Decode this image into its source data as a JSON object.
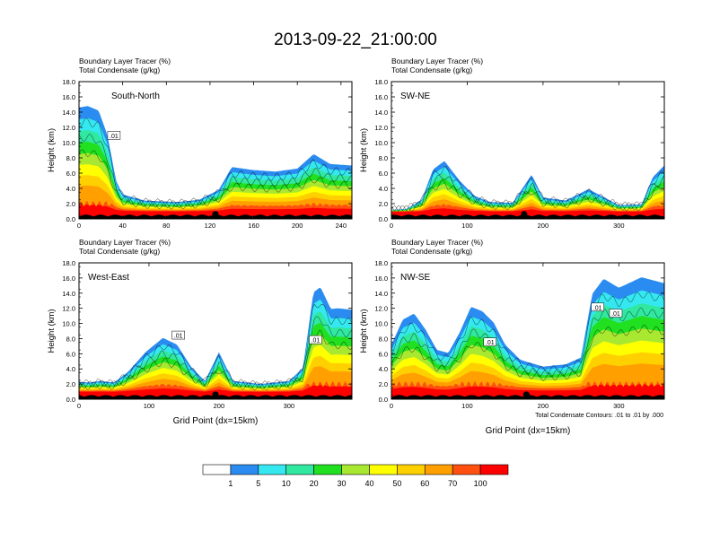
{
  "title": "2013-09-22_21:00:00",
  "footnote": "Total Condensate Contours: .01 to .01 by .000",
  "colors": [
    "#ffffff",
    "#2a8cf0",
    "#35e8f0",
    "#30e8a0",
    "#20e020",
    "#a8e830",
    "#ffff00",
    "#ffd000",
    "#ffa000",
    "#ff5010",
    "#ff0000"
  ],
  "chart_data": [
    {
      "type": "heatmap",
      "panel": "South-North",
      "header1": "Boundary Layer Tracer   (%)",
      "header2": "Total Condensate   (g/kg)",
      "xlabel": "",
      "ylabel": "Height (km)",
      "xlim": [
        0,
        250
      ],
      "ylim": [
        0,
        18
      ],
      "xticks": [
        "0",
        "40",
        "80",
        "120",
        "160",
        "200",
        "240"
      ],
      "yticks": [
        "0.0",
        "2.0",
        "4.0",
        "6.0",
        "8.0",
        "10.0",
        "12.0",
        "14.0",
        "16.0",
        "18.0"
      ],
      "contour_labels": [
        {
          "text": ".01",
          "x": 32,
          "y": 10.9
        }
      ],
      "marker_x": 125,
      "profile": {
        "x": [
          0,
          8,
          18,
          26,
          34,
          40,
          60,
          90,
          110,
          128,
          140,
          160,
          180,
          200,
          215,
          230,
          250
        ],
        "ztop": [
          14.6,
          14.8,
          14.2,
          11,
          5,
          3.2,
          2.4,
          2.2,
          2.5,
          3.8,
          6.8,
          6.4,
          6.2,
          6.6,
          8.5,
          7.2,
          7
        ]
      }
    },
    {
      "type": "heatmap",
      "panel": "SW-NE",
      "header1": "Boundary Layer Tracer   (%)",
      "header2": "Total Condensate   (g/kg)",
      "xlabel": "",
      "ylabel": "Height (km)",
      "xlim": [
        0,
        360
      ],
      "ylim": [
        0,
        18
      ],
      "xticks": [
        "0",
        "100",
        "200",
        "300"
      ],
      "yticks": [
        "0.0",
        "2.0",
        "4.0",
        "6.0",
        "8.0",
        "10.0",
        "12.0",
        "14.0",
        "16.0",
        "18.0"
      ],
      "contour_labels": [],
      "marker_x": 175,
      "profile": {
        "x": [
          0,
          20,
          40,
          55,
          70,
          90,
          110,
          130,
          160,
          185,
          200,
          230,
          260,
          300,
          330,
          345,
          360
        ],
        "ztop": [
          1.2,
          1.3,
          2.5,
          6.5,
          7.6,
          5,
          3,
          2.2,
          2.1,
          5.8,
          2.8,
          2.4,
          3.9,
          1.8,
          1.9,
          5.5,
          7
        ]
      }
    },
    {
      "type": "heatmap",
      "panel": "West-East",
      "header1": "Boundary Layer Tracer   (%)",
      "header2": "Total Condensate   (g/kg)",
      "xlabel": "Grid Point (dx=15km)",
      "ylabel": "Height (km)",
      "xlim": [
        0,
        390
      ],
      "ylim": [
        0,
        18
      ],
      "xticks": [
        "0",
        "100",
        "200",
        "300"
      ],
      "yticks": [
        "0.0",
        "2.0",
        "4.0",
        "6.0",
        "8.0",
        "10.0",
        "12.0",
        "14.0",
        "16.0",
        "18.0"
      ],
      "contour_labels": [
        {
          "text": ".01",
          "x": 142,
          "y": 8.4
        },
        {
          "text": ".01",
          "x": 338,
          "y": 7.8
        }
      ],
      "marker_x": 195,
      "profile": {
        "x": [
          0,
          15,
          30,
          50,
          70,
          95,
          120,
          140,
          160,
          180,
          200,
          220,
          260,
          300,
          320,
          335,
          345,
          360,
          370,
          390
        ],
        "ztop": [
          2.3,
          2.2,
          2.4,
          2.2,
          3.6,
          6.2,
          8.1,
          7.2,
          4.3,
          2.4,
          6.2,
          2.4,
          2,
          2.4,
          4.1,
          14.1,
          14.8,
          11.9,
          12,
          11.8
        ]
      }
    },
    {
      "type": "heatmap",
      "panel": "NW-SE",
      "header1": "Boundary Layer Tracer   (%)",
      "header2": "Total Condensate   (g/kg)",
      "xlabel": "Grid Point (dx=15km)",
      "ylabel": "Height (km)",
      "xlim": [
        0,
        360
      ],
      "ylim": [
        0,
        18
      ],
      "xticks": [
        "0",
        "100",
        "200",
        "300"
      ],
      "yticks": [
        "0.0",
        "2.0",
        "4.0",
        "6.0",
        "8.0",
        "10.0",
        "12.0",
        "14.0",
        "16.0",
        "18.0"
      ],
      "contour_labels": [
        {
          "text": ".01",
          "x": 130,
          "y": 7.5
        },
        {
          "text": ".01",
          "x": 272,
          "y": 12.1
        },
        {
          "text": ".01",
          "x": 296,
          "y": 11.3
        }
      ],
      "marker_x": 178,
      "profile": {
        "x": [
          0,
          15,
          30,
          45,
          60,
          75,
          90,
          105,
          120,
          135,
          150,
          170,
          200,
          230,
          250,
          265,
          280,
          300,
          330,
          360
        ],
        "ztop": [
          7.2,
          10.5,
          11.3,
          9.2,
          6.5,
          6.1,
          8.8,
          12.2,
          11.6,
          10.1,
          7.2,
          5.2,
          4.3,
          4.6,
          5.5,
          13.9,
          15.9,
          14.7,
          16.1,
          15.3
        ]
      }
    }
  ],
  "legend": {
    "labels": [
      "1",
      "5",
      "10",
      "20",
      "30",
      "40",
      "50",
      "60",
      "70",
      "100"
    ]
  }
}
